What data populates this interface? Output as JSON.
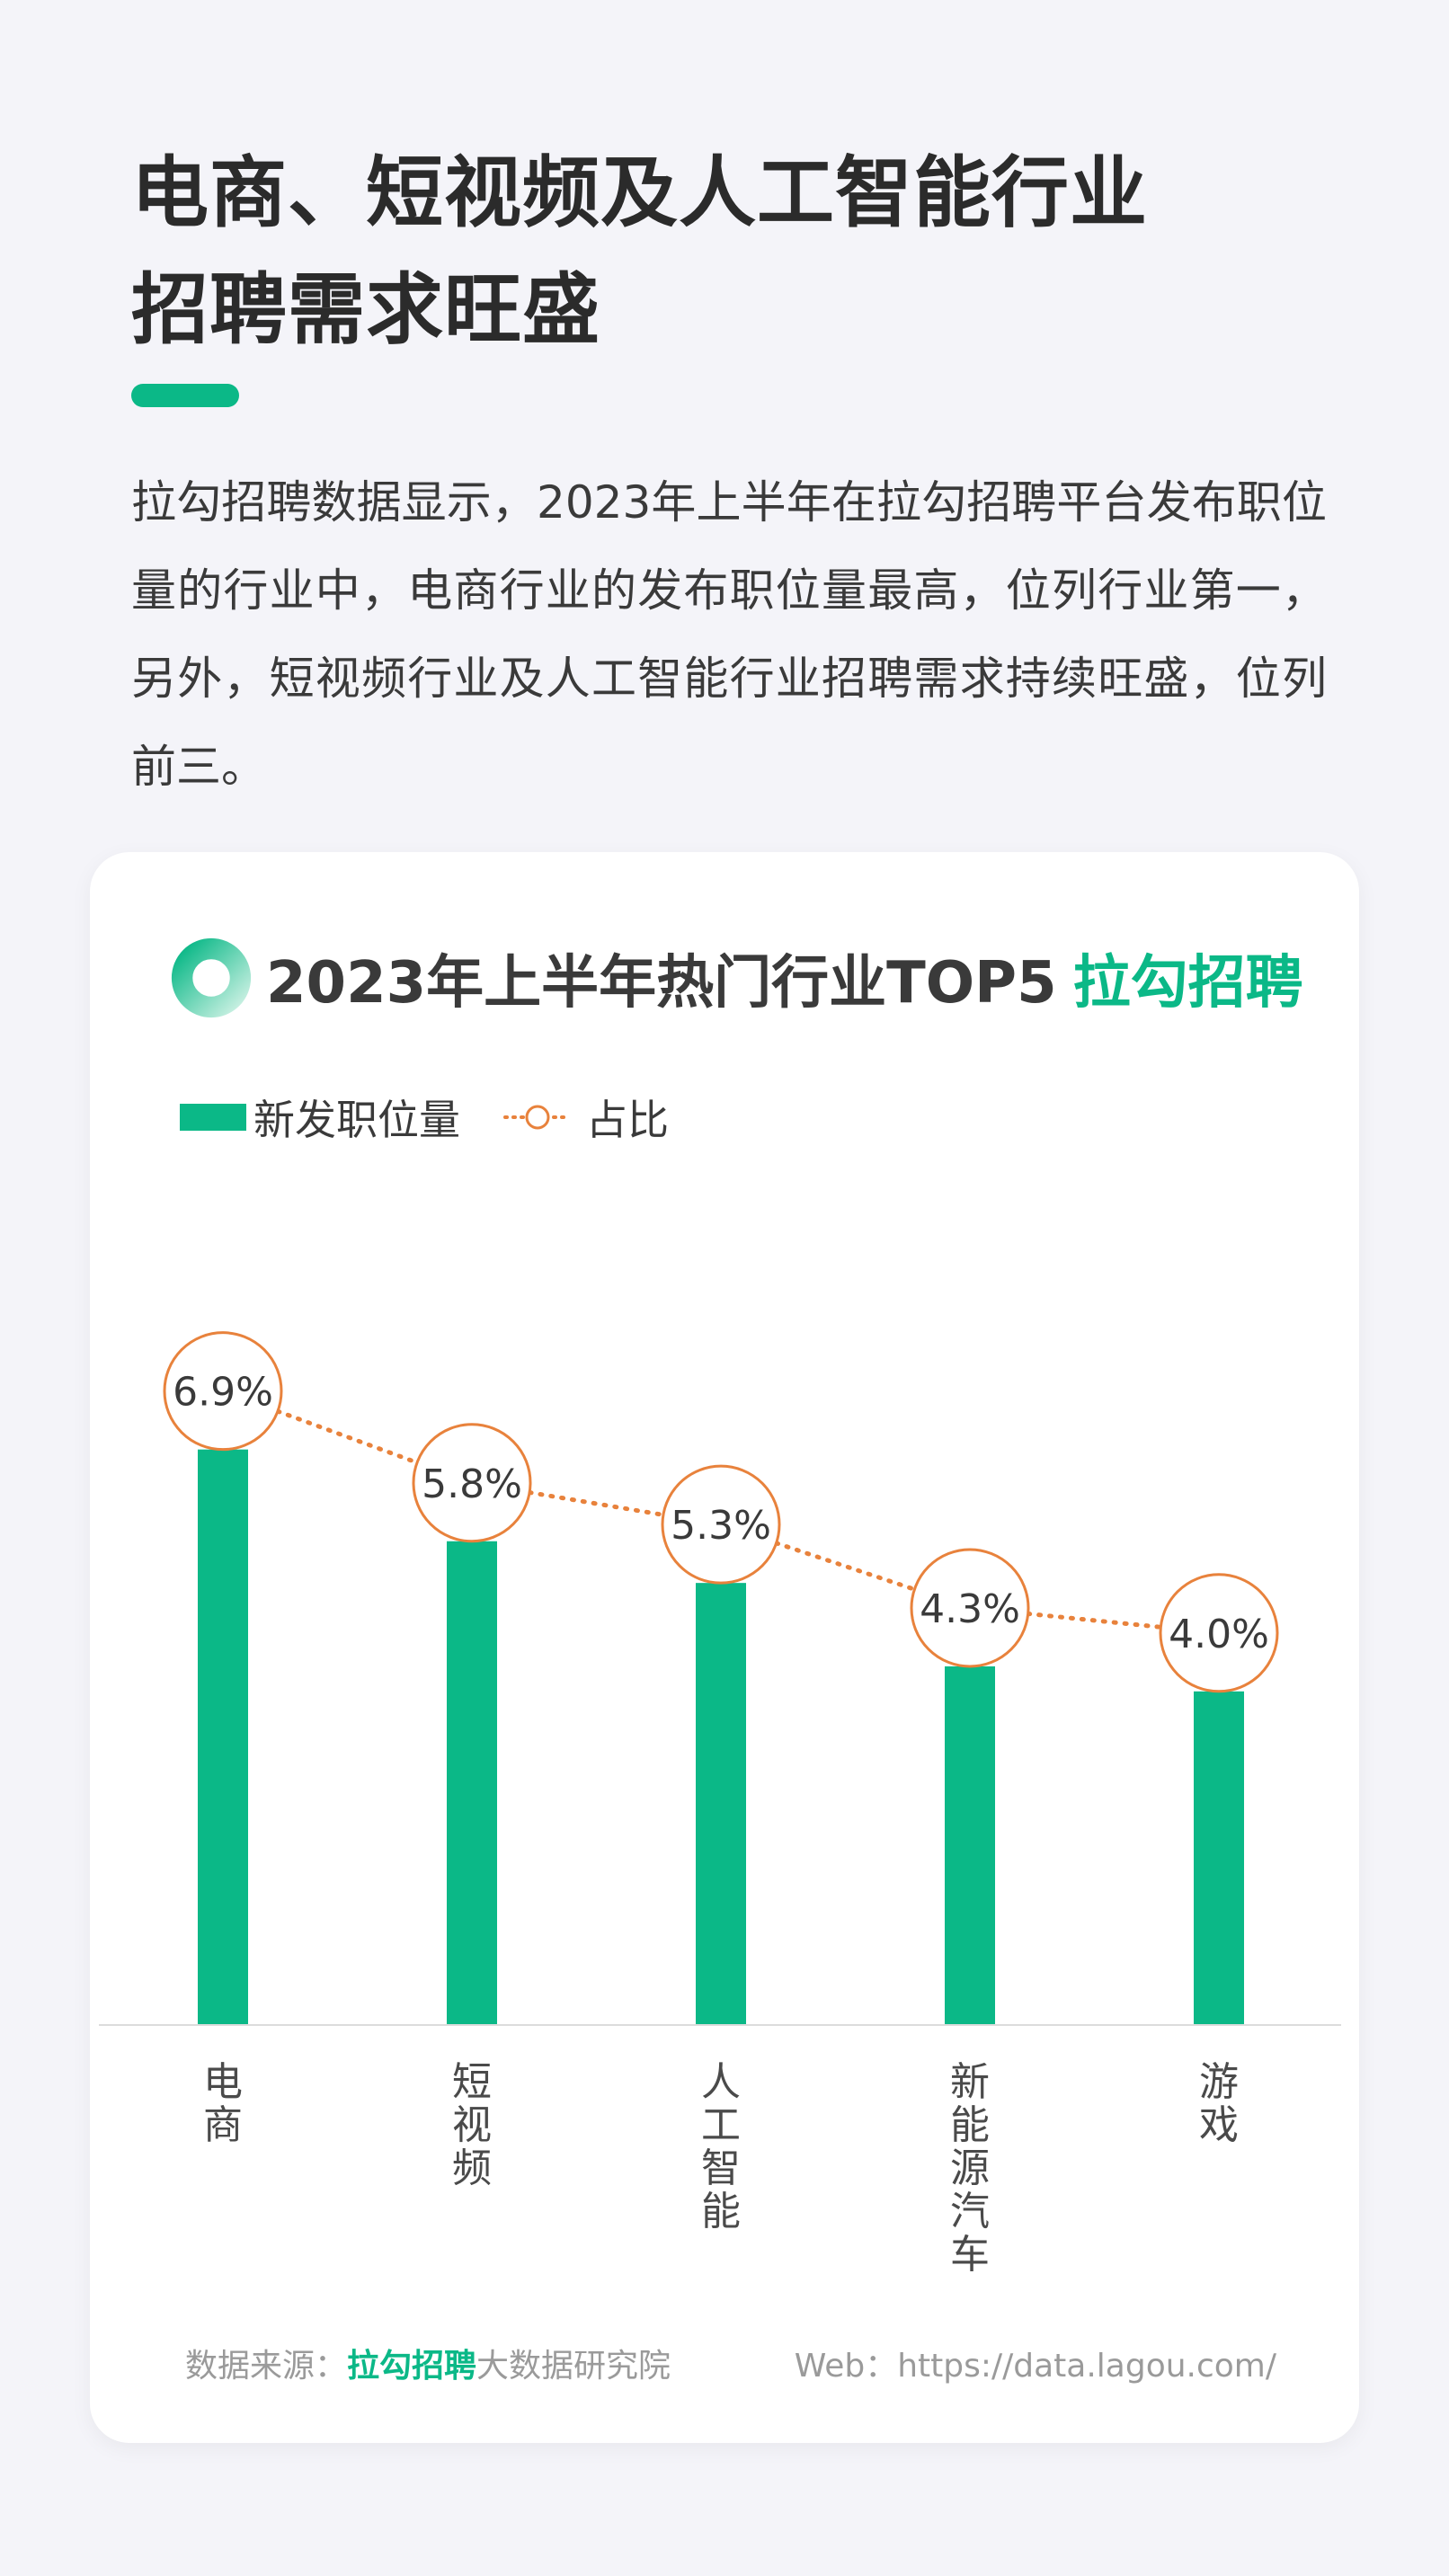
{
  "page": {
    "title_line1": "电商、短视频及人工智能行业",
    "title_line2": "招聘需求旺盛",
    "intro": "拉勾招聘数据显示，2023年上半年在拉勾招聘平台发布职位量的行业中，电商行业的发布职位量最高，位列行业第一，另外，短视频行业及人工智能行业招聘需求持续旺盛，位列前三。"
  },
  "card": {
    "chart_title": "2023年上半年热门行业TOP5",
    "brand": "拉勾招聘",
    "legend": {
      "bar_label": "新发职位量",
      "line_label": "占比"
    },
    "footer": {
      "source_prefix": "数据来源：",
      "source_brand": "拉勾招聘",
      "source_suffix": "大数据研究院",
      "web": "Web：https://data.lagou.com/"
    }
  },
  "colors": {
    "primary_green": "#0bb887",
    "accent_orange": "#e8823c",
    "background": "#f4f4f9",
    "card": "#ffffff",
    "text_dark": "#2b2b2b",
    "text_muted": "#9a9a9a"
  },
  "icons": {
    "header_icon": "ring-icon"
  },
  "chart_data": {
    "type": "bar",
    "categories": [
      "电商",
      "短视频",
      "人工智能",
      "新能源汽车",
      "游戏"
    ],
    "series": [
      {
        "name": "新发职位量",
        "type": "bar",
        "values": [
          6.9,
          5.8,
          5.3,
          4.3,
          4.0
        ]
      },
      {
        "name": "占比",
        "type": "line",
        "values": [
          6.9,
          5.8,
          5.3,
          4.3,
          4.0
        ],
        "labels": [
          "6.9%",
          "5.8%",
          "5.3%",
          "4.3%",
          "4.0%"
        ],
        "unit": "%"
      }
    ],
    "yaxis_visible": false,
    "grid": false,
    "legend_position": "top-left"
  }
}
